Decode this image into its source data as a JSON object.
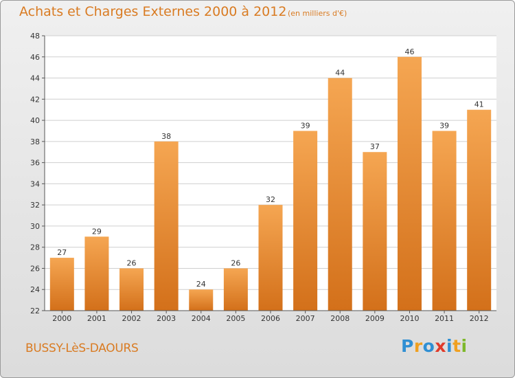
{
  "header": {
    "title": "Achats et Charges Externes 2000 à 2012",
    "subtitle": "(en milliers d'€)"
  },
  "footer": {
    "commune": "BUSSY-LèS-DAOURS",
    "logo_letters": [
      "P",
      "r",
      "o",
      "x",
      "i",
      "t",
      "i"
    ],
    "logo_colors": [
      "#2f8fd3",
      "#f0a020",
      "#2f8fd3",
      "#e03a2a",
      "#2f8fd3",
      "#f0a020",
      "#7db82a"
    ]
  },
  "chart_data": {
    "type": "bar",
    "title": "Achats et Charges Externes 2000 à 2012",
    "subtitle": "(en milliers d'€)",
    "xlabel": "",
    "ylabel": "",
    "categories": [
      "2000",
      "2001",
      "2002",
      "2003",
      "2004",
      "2005",
      "2006",
      "2007",
      "2008",
      "2009",
      "2010",
      "2011",
      "2012"
    ],
    "values": [
      27,
      29,
      26,
      38,
      24,
      26,
      32,
      39,
      44,
      37,
      46,
      39,
      41
    ],
    "ylim": [
      22,
      48
    ],
    "yticks": [
      22,
      24,
      26,
      28,
      30,
      32,
      34,
      36,
      38,
      40,
      42,
      44,
      46,
      48
    ],
    "grid": true,
    "legend": "none",
    "bar_color_top": "#f5a652",
    "bar_color_bottom": "#d3701a",
    "grid_color": "#cfcfcf",
    "text_color": "#333333"
  }
}
